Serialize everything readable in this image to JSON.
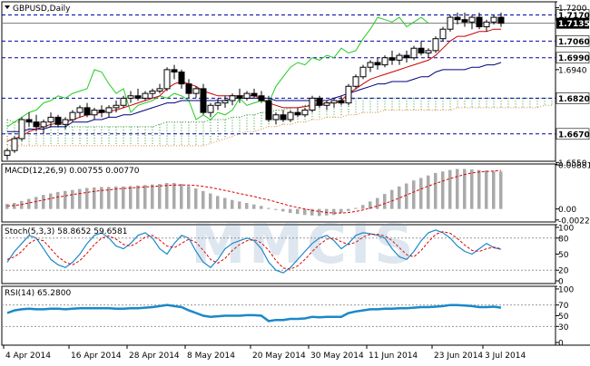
{
  "chart_data": [
    {
      "type": "candlestick",
      "title": "GBPUSD,Daily",
      "price_axis": {
        "min": 1.6555,
        "max": 1.7225,
        "ticks": [
          1.72,
          1.694,
          1.655
        ],
        "labels": [
          "1.7200",
          "1.6940",
          "1.6550"
        ]
      },
      "levels": [
        {
          "value": 1.717,
          "label": "1.7170"
        },
        {
          "value": 1.706,
          "label": "1.7060"
        },
        {
          "value": 1.699,
          "label": "1.6990"
        },
        {
          "value": 1.682,
          "label": "1.6820"
        },
        {
          "value": 1.667,
          "label": "1.6670"
        }
      ],
      "current_price": {
        "value": 1.7135,
        "label": "1.7135"
      },
      "x_axis": {
        "labels": [
          "4 Apr 2014",
          "16 Apr 2014",
          "28 Apr 2014",
          "8 May 2014",
          "20 May 2014",
          "30 May 2014",
          "11 Jun 2014",
          "23 Jun 2014",
          "3 Jul 2014"
        ]
      },
      "candles": [
        [
          1.658,
          1.661,
          1.656,
          1.66
        ],
        [
          1.66,
          1.666,
          1.659,
          1.665
        ],
        [
          1.665,
          1.674,
          1.664,
          1.673
        ],
        [
          1.673,
          1.676,
          1.67,
          1.672
        ],
        [
          1.672,
          1.675,
          1.668,
          1.67
        ],
        [
          1.67,
          1.673,
          1.667,
          1.672
        ],
        [
          1.672,
          1.676,
          1.67,
          1.674
        ],
        [
          1.674,
          1.675,
          1.67,
          1.671
        ],
        [
          1.671,
          1.674,
          1.669,
          1.673
        ],
        [
          1.673,
          1.677,
          1.672,
          1.676
        ],
        [
          1.676,
          1.679,
          1.674,
          1.678
        ],
        [
          1.678,
          1.68,
          1.674,
          1.675
        ],
        [
          1.675,
          1.678,
          1.673,
          1.677
        ],
        [
          1.677,
          1.679,
          1.674,
          1.676
        ],
        [
          1.676,
          1.679,
          1.674,
          1.678
        ],
        [
          1.678,
          1.681,
          1.676,
          1.679
        ],
        [
          1.679,
          1.683,
          1.678,
          1.682
        ],
        [
          1.682,
          1.685,
          1.68,
          1.683
        ],
        [
          1.683,
          1.686,
          1.681,
          1.682
        ],
        [
          1.682,
          1.685,
          1.681,
          1.684
        ],
        [
          1.684,
          1.686,
          1.682,
          1.685
        ],
        [
          1.685,
          1.688,
          1.684,
          1.686
        ],
        [
          1.686,
          1.695,
          1.685,
          1.694
        ],
        [
          1.694,
          1.696,
          1.69,
          1.693
        ],
        [
          1.693,
          1.694,
          1.686,
          1.688
        ],
        [
          1.688,
          1.69,
          1.682,
          1.684
        ],
        [
          1.684,
          1.687,
          1.682,
          1.686
        ],
        [
          1.686,
          1.688,
          1.675,
          1.676
        ],
        [
          1.676,
          1.68,
          1.674,
          1.679
        ],
        [
          1.679,
          1.682,
          1.677,
          1.68
        ],
        [
          1.68,
          1.683,
          1.678,
          1.681
        ],
        [
          1.681,
          1.684,
          1.679,
          1.683
        ],
        [
          1.683,
          1.686,
          1.68,
          1.682
        ],
        [
          1.682,
          1.685,
          1.681,
          1.684
        ],
        [
          1.684,
          1.686,
          1.682,
          1.683
        ],
        [
          1.683,
          1.685,
          1.68,
          1.681
        ],
        [
          1.681,
          1.683,
          1.672,
          1.673
        ],
        [
          1.673,
          1.676,
          1.671,
          1.675
        ],
        [
          1.675,
          1.677,
          1.672,
          1.673
        ],
        [
          1.673,
          1.677,
          1.672,
          1.676
        ],
        [
          1.676,
          1.678,
          1.674,
          1.675
        ],
        [
          1.675,
          1.678,
          1.674,
          1.677
        ],
        [
          1.677,
          1.683,
          1.676,
          1.682
        ],
        [
          1.682,
          1.683,
          1.678,
          1.679
        ],
        [
          1.679,
          1.681,
          1.677,
          1.68
        ],
        [
          1.68,
          1.682,
          1.678,
          1.681
        ],
        [
          1.681,
          1.683,
          1.679,
          1.68
        ],
        [
          1.68,
          1.688,
          1.679,
          1.687
        ],
        [
          1.687,
          1.692,
          1.686,
          1.691
        ],
        [
          1.691,
          1.696,
          1.69,
          1.695
        ],
        [
          1.695,
          1.698,
          1.693,
          1.697
        ],
        [
          1.697,
          1.699,
          1.694,
          1.696
        ],
        [
          1.696,
          1.7,
          1.695,
          1.699
        ],
        [
          1.699,
          1.702,
          1.696,
          1.698
        ],
        [
          1.698,
          1.701,
          1.696,
          1.7
        ],
        [
          1.7,
          1.702,
          1.697,
          1.699
        ],
        [
          1.699,
          1.704,
          1.698,
          1.703
        ],
        [
          1.703,
          1.706,
          1.7,
          1.701
        ],
        [
          1.701,
          1.703,
          1.699,
          1.702
        ],
        [
          1.702,
          1.708,
          1.701,
          1.707
        ],
        [
          1.707,
          1.712,
          1.706,
          1.711
        ],
        [
          1.711,
          1.717,
          1.71,
          1.716
        ],
        [
          1.716,
          1.718,
          1.713,
          1.715
        ],
        [
          1.715,
          1.718,
          1.712,
          1.714
        ],
        [
          1.714,
          1.717,
          1.711,
          1.716
        ],
        [
          1.716,
          1.718,
          1.711,
          1.712
        ],
        [
          1.712,
          1.715,
          1.71,
          1.714
        ],
        [
          1.714,
          1.717,
          1.713,
          1.716
        ],
        [
          1.716,
          1.718,
          1.712,
          1.7135
        ]
      ],
      "tenkan": [
        1.664,
        1.665,
        1.666,
        1.668,
        1.669,
        1.67,
        1.671,
        1.6715,
        1.672,
        1.673,
        1.674,
        1.675,
        1.6755,
        1.676,
        1.6765,
        1.677,
        1.678,
        1.679,
        1.68,
        1.681,
        1.682,
        1.683,
        1.686,
        1.688,
        1.689,
        1.688,
        1.687,
        1.685,
        1.684,
        1.683,
        1.683,
        1.683,
        1.683,
        1.683,
        1.683,
        1.682,
        1.68,
        1.679,
        1.678,
        1.678,
        1.678,
        1.6785,
        1.679,
        1.679,
        1.68,
        1.68,
        1.681,
        1.684,
        1.686,
        1.688,
        1.69,
        1.691,
        1.692,
        1.693,
        1.694,
        1.695,
        1.696,
        1.697,
        1.698,
        1.7,
        1.703,
        1.706,
        1.708,
        1.708,
        1.709,
        1.71,
        1.71,
        1.711,
        1.711
      ],
      "kijun": [
        1.668,
        1.668,
        1.668,
        1.669,
        1.669,
        1.669,
        1.67,
        1.67,
        1.67,
        1.672,
        1.672,
        1.672,
        1.673,
        1.673,
        1.674,
        1.674,
        1.675,
        1.675,
        1.676,
        1.677,
        1.678,
        1.679,
        1.68,
        1.68,
        1.681,
        1.681,
        1.681,
        1.681,
        1.681,
        1.681,
        1.681,
        1.682,
        1.682,
        1.682,
        1.682,
        1.682,
        1.682,
        1.681,
        1.681,
        1.681,
        1.681,
        1.681,
        1.681,
        1.681,
        1.681,
        1.682,
        1.683,
        1.684,
        1.685,
        1.686,
        1.687,
        1.688,
        1.688,
        1.689,
        1.689,
        1.689,
        1.69,
        1.691,
        1.691,
        1.693,
        1.694,
        1.694,
        1.694,
        1.694,
        1.695,
        1.695,
        1.696,
        1.696,
        1.697
      ],
      "chikou_span_values": [
        1.67,
        1.672,
        1.674,
        1.676,
        1.677,
        1.68,
        1.681,
        1.683,
        1.682,
        1.684,
        1.685,
        1.686,
        1.694,
        1.693,
        1.688,
        1.684,
        1.686,
        1.676,
        1.679,
        1.68,
        1.681,
        1.683,
        1.682,
        1.684,
        1.683,
        1.681,
        1.673,
        1.675,
        1.673,
        1.676,
        1.675,
        1.677,
        1.682,
        1.679,
        1.68,
        1.681,
        1.68,
        1.687,
        1.691,
        1.695,
        1.697,
        1.696,
        1.699,
        1.698,
        1.7,
        1.699,
        1.703,
        1.701,
        1.702,
        1.707,
        1.711,
        1.716,
        1.715,
        1.714,
        1.716,
        1.712,
        1.714,
        1.716,
        1.7135
      ],
      "cloud_top": [
        1.673,
        1.672,
        1.672,
        1.672,
        1.671,
        1.671,
        1.67,
        1.67,
        1.67,
        1.67,
        1.67,
        1.67,
        1.67,
        1.67,
        1.67,
        1.67,
        1.67,
        1.67,
        1.67,
        1.67,
        1.67,
        1.671,
        1.672,
        1.672,
        1.672,
        1.672,
        1.672,
        1.672,
        1.673,
        1.673,
        1.673,
        1.674,
        1.674,
        1.675,
        1.675,
        1.676,
        1.676,
        1.677,
        1.677,
        1.678,
        1.678,
        1.679,
        1.679,
        1.68,
        1.68,
        1.68,
        1.681,
        1.681,
        1.682,
        1.682,
        1.682,
        1.682,
        1.682,
        1.682,
        1.682,
        1.682,
        1.682,
        1.682,
        1.682,
        1.682,
        1.682,
        1.682,
        1.682,
        1.682,
        1.682,
        1.682,
        1.682,
        1.682,
        1.682,
        1.682,
        1.682,
        1.682,
        1.682,
        1.682,
        1.682,
        1.682,
        1.682,
        1.682,
        1.682,
        1.682,
        1.682,
        1.682,
        1.682,
        1.682,
        1.682,
        1.682,
        1.682,
        1.682,
        1.682,
        1.682,
        1.682,
        1.682,
        1.682,
        1.682
      ],
      "cloud_bottom": [
        1.662,
        1.662,
        1.662,
        1.662,
        1.662,
        1.662,
        1.662,
        1.662,
        1.662,
        1.662,
        1.662,
        1.662,
        1.662,
        1.662,
        1.662,
        1.662,
        1.662,
        1.662,
        1.662,
        1.662,
        1.662,
        1.662,
        1.662,
        1.662,
        1.662,
        1.662,
        1.662,
        1.662,
        1.663,
        1.664,
        1.665,
        1.666,
        1.667,
        1.668,
        1.668,
        1.669,
        1.67,
        1.67,
        1.671,
        1.671,
        1.672,
        1.672,
        1.673,
        1.673,
        1.674,
        1.674,
        1.674,
        1.675,
        1.675,
        1.676,
        1.676,
        1.676,
        1.677,
        1.677,
        1.677,
        1.677,
        1.677,
        1.677,
        1.677,
        1.677,
        1.677,
        1.677,
        1.678,
        1.678,
        1.678,
        1.678,
        1.678,
        1.678,
        1.678,
        1.678,
        1.678,
        1.678,
        1.678,
        1.678,
        1.679,
        1.679,
        1.679,
        1.679,
        1.679,
        1.679,
        1.679,
        1.679,
        1.679,
        1.679,
        1.679,
        1.679,
        1.679,
        1.679,
        1.679,
        1.679,
        1.679,
        1.679,
        1.679,
        1.679
      ]
    },
    {
      "type": "bar",
      "title": "MACD(12,26,9) 0.00755 0.00770",
      "y_axis": {
        "min": -0.0026,
        "max": 0.009,
        "labels": [
          "0.00881",
          "0.00",
          "-0.00221"
        ],
        "ticks": [
          0.00881,
          0.0,
          -0.00221
        ]
      },
      "histogram": [
        0.001,
        0.0012,
        0.0016,
        0.002,
        0.0024,
        0.0028,
        0.0031,
        0.0034,
        0.0036,
        0.0038,
        0.004,
        0.0042,
        0.0043,
        0.0044,
        0.0044,
        0.0045,
        0.0045,
        0.0046,
        0.0047,
        0.0048,
        0.0049,
        0.005,
        0.0052,
        0.0052,
        0.005,
        0.0046,
        0.0041,
        0.0036,
        0.0031,
        0.0026,
        0.0022,
        0.0018,
        0.0015,
        0.0012,
        0.0009,
        0.0006,
        0.0002,
        -0.0002,
        -0.0005,
        -0.0008,
        -0.001,
        -0.0012,
        -0.0013,
        -0.0014,
        -0.0013,
        -0.0012,
        -0.0008,
        -0.0004,
        0.0002,
        0.0008,
        0.0015,
        0.0022,
        0.003,
        0.0038,
        0.0045,
        0.0051,
        0.0057,
        0.0062,
        0.0067,
        0.0072,
        0.0075,
        0.0078,
        0.008,
        0.008,
        0.0079,
        0.0078,
        0.0077,
        0.0076,
        0.0075
      ],
      "signal": [
        0.0006,
        0.0007,
        0.0009,
        0.0012,
        0.0015,
        0.0018,
        0.0021,
        0.0024,
        0.0026,
        0.0029,
        0.0031,
        0.0033,
        0.0035,
        0.0037,
        0.0038,
        0.004,
        0.0041,
        0.0042,
        0.0043,
        0.0044,
        0.0045,
        0.0046,
        0.0047,
        0.0048,
        0.0048,
        0.0048,
        0.0047,
        0.0045,
        0.0043,
        0.004,
        0.0037,
        0.0034,
        0.0031,
        0.0028,
        0.0025,
        0.0021,
        0.0018,
        0.0014,
        0.001,
        0.0006,
        0.0003,
        0.0,
        -0.0003,
        -0.0005,
        -0.0007,
        -0.0008,
        -0.0008,
        -0.0007,
        -0.0005,
        -0.0002,
        0.0002,
        0.0006,
        0.0011,
        0.0016,
        0.0022,
        0.0028,
        0.0034,
        0.004,
        0.0046,
        0.0051,
        0.0056,
        0.0061,
        0.0065,
        0.0069,
        0.0072,
        0.0074,
        0.0075,
        0.0076,
        0.0077
      ]
    },
    {
      "type": "line",
      "title": "Stoch(5,3,3) 58.8652 59.6581",
      "y_axis": {
        "min": -5,
        "max": 105,
        "labels": [
          "100",
          "80",
          "50",
          "20",
          "0"
        ],
        "ticks": [
          100,
          80,
          50,
          20,
          0
        ]
      },
      "levels": [
        80,
        20
      ],
      "series": [
        {
          "values": [
            35,
            55,
            70,
            85,
            80,
            60,
            40,
            30,
            25,
            35,
            50,
            70,
            85,
            90,
            80,
            65,
            60,
            70,
            85,
            90,
            80,
            60,
            50,
            70,
            85,
            80,
            55,
            35,
            25,
            40,
            60,
            70,
            75,
            80,
            75,
            60,
            35,
            20,
            15,
            25,
            40,
            55,
            70,
            80,
            85,
            75,
            60,
            70,
            85,
            90,
            88,
            85,
            80,
            60,
            45,
            40,
            55,
            75,
            90,
            95,
            90,
            80,
            65,
            55,
            50,
            60,
            70,
            62,
            59
          ]
        },
        {
          "values": [
            40,
            45,
            55,
            70,
            78,
            75,
            60,
            45,
            35,
            30,
            38,
            52,
            68,
            80,
            84,
            78,
            68,
            65,
            72,
            82,
            85,
            76,
            65,
            62,
            70,
            78,
            72,
            57,
            40,
            33,
            42,
            57,
            68,
            75,
            77,
            71,
            57,
            38,
            24,
            22,
            28,
            40,
            55,
            68,
            78,
            80,
            73,
            68,
            72,
            82,
            87,
            87,
            84,
            75,
            62,
            49,
            45,
            57,
            73,
            87,
            92,
            89,
            79,
            67,
            57,
            55,
            60,
            63,
            60
          ]
        }
      ]
    },
    {
      "type": "line",
      "title": "RSI(14) 65.2800",
      "y_axis": {
        "min": -5,
        "max": 105,
        "labels": [
          "100",
          "70",
          "50",
          "30",
          "0"
        ],
        "ticks": [
          100,
          70,
          50,
          30,
          0
        ]
      },
      "levels": [
        70,
        30
      ],
      "series": [
        {
          "values": [
            55,
            60,
            62,
            63,
            62,
            62,
            63,
            63,
            62,
            63,
            64,
            64,
            64,
            64,
            64,
            63,
            63,
            64,
            64,
            65,
            66,
            68,
            70,
            68,
            66,
            60,
            55,
            50,
            48,
            49,
            50,
            50,
            50,
            51,
            51,
            50,
            40,
            42,
            42,
            44,
            44,
            45,
            48,
            47,
            48,
            48,
            48,
            55,
            58,
            60,
            62,
            62,
            63,
            63,
            64,
            64,
            65,
            66,
            66,
            67,
            68,
            70,
            70,
            69,
            68,
            66,
            66,
            67,
            65
          ]
        }
      ]
    }
  ]
}
